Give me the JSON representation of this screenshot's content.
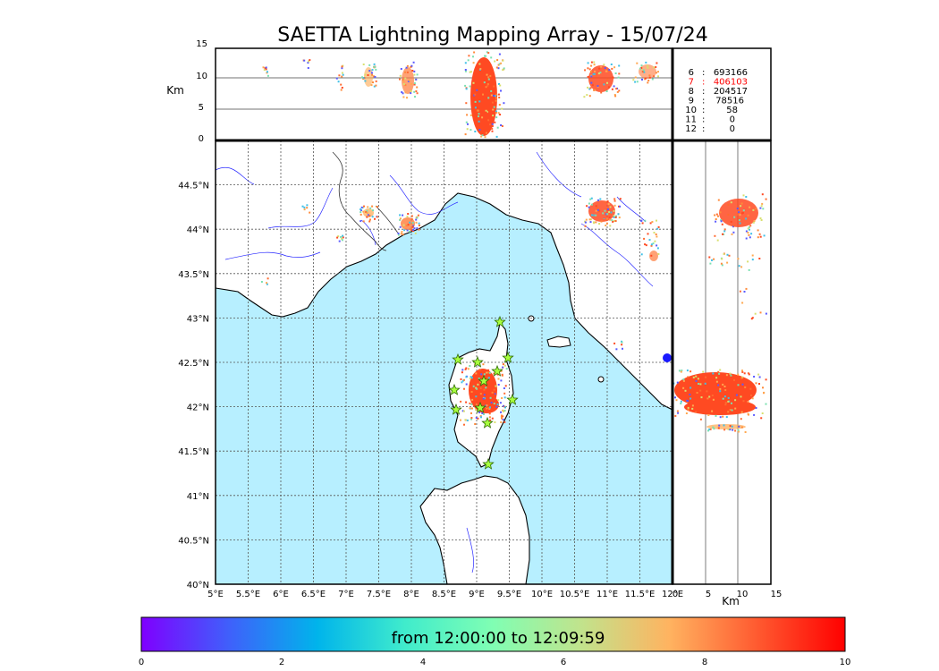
{
  "title": "SAETTA Lightning Mapping Array - 15/07/24",
  "colors": {
    "sea": "#b7efff",
    "land": "#ffffff",
    "coast": "#000000",
    "river": "#2a2aff",
    "grid": "#555555",
    "lightning": "#ff4a22",
    "station_fill": "#a8ff3e",
    "station_stroke": "#2d6a00",
    "stats_highlight": "#ff0000"
  },
  "altitude_panel": {
    "ylabel": "Km",
    "ticks": [
      "0",
      "5",
      "10",
      "15"
    ]
  },
  "side_panel": {
    "xlabel": "Km",
    "ticks": [
      "0",
      "5",
      "10",
      "15"
    ]
  },
  "map": {
    "lon_ticks": [
      "5°E",
      "5.5°E",
      "6°E",
      "6.5°E",
      "7°E",
      "7.5°E",
      "8°E",
      "8.5°E",
      "9°E",
      "9.5°E",
      "10°E",
      "10.5°E",
      "11°E",
      "11.5°E",
      "12°E"
    ],
    "lat_ticks": [
      "40°N",
      "40.5°N",
      "41°N",
      "41.5°N",
      "42°N",
      "42.5°N",
      "43°N",
      "43.5°N",
      "44°N",
      "44.5°N"
    ]
  },
  "station_stats": [
    {
      "n": "6",
      "sep": ":",
      "count": "693166",
      "highlight": false
    },
    {
      "n": "7",
      "sep": ":",
      "count": "406103",
      "highlight": true
    },
    {
      "n": "8",
      "sep": ":",
      "count": "204517",
      "highlight": false
    },
    {
      "n": "9",
      "sep": ":",
      "count": "78516",
      "highlight": false
    },
    {
      "n": "10",
      "sep": ":",
      "count": "58",
      "highlight": false
    },
    {
      "n": "11",
      "sep": ":",
      "count": "0",
      "highlight": false
    },
    {
      "n": "12",
      "sep": ":",
      "count": "0",
      "highlight": false
    }
  ],
  "colorbar": {
    "label": "from 12:00:00 to 12:09:59",
    "ticks": [
      "0",
      "2",
      "4",
      "6",
      "8",
      "10"
    ],
    "stops": [
      "#7f00ff",
      "#3f60fb",
      "#00b4eb",
      "#40eccc",
      "#80feb3",
      "#c1e38c",
      "#ffb360",
      "#ff5a30",
      "#ff0000"
    ]
  }
}
